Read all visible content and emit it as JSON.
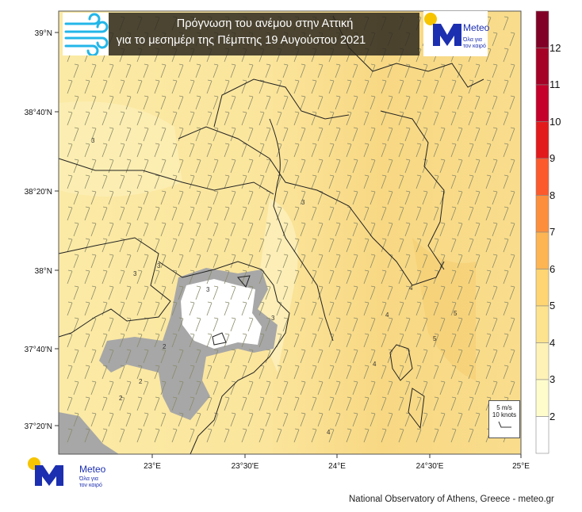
{
  "title": {
    "line1": "Πρόγνωση του ανέμου στην Αττική",
    "line2": "για το μεσημέρι της Πέμπτης 19 Αυγούστου 2021"
  },
  "logo": {
    "word": "Meteo",
    "tagline_1": "Όλα για",
    "tagline_2": "τον καιρό",
    "brand_color": "#1c2fb0",
    "sun_color": "#f6c400",
    "icon": "wind-icon"
  },
  "axes": {
    "lat_ticks": [
      "39°N",
      "38°40'N",
      "38°20'N",
      "38°N",
      "37°40'N",
      "37°20'N"
    ],
    "lon_ticks": [
      "23°E",
      "23°30'E",
      "24°E",
      "24°30'E",
      "25°E"
    ]
  },
  "colorbar": {
    "labels": [
      "12",
      "11",
      "10",
      "9",
      "8",
      "7",
      "6",
      "5",
      "4",
      "3",
      "2"
    ],
    "colors": [
      "#800026",
      "#a50026",
      "#c4002b",
      "#e31a1c",
      "#fc5a2c",
      "#fd8f3c",
      "#fdb553",
      "#fed572",
      "#fee38f",
      "#fef2b7",
      "#fffccc",
      "#ffffff"
    ],
    "unit": "m/s"
  },
  "legend": {
    "speed": "5 m/s",
    "knots": "10 knots"
  },
  "contour_labels": [
    "3",
    "3",
    "3",
    "3",
    "3",
    "2",
    "2",
    "2",
    "3",
    "4",
    "4",
    "4",
    "5",
    "5",
    "4"
  ],
  "footer": "National Observatory of Athens, Greece - meteo.gr"
}
